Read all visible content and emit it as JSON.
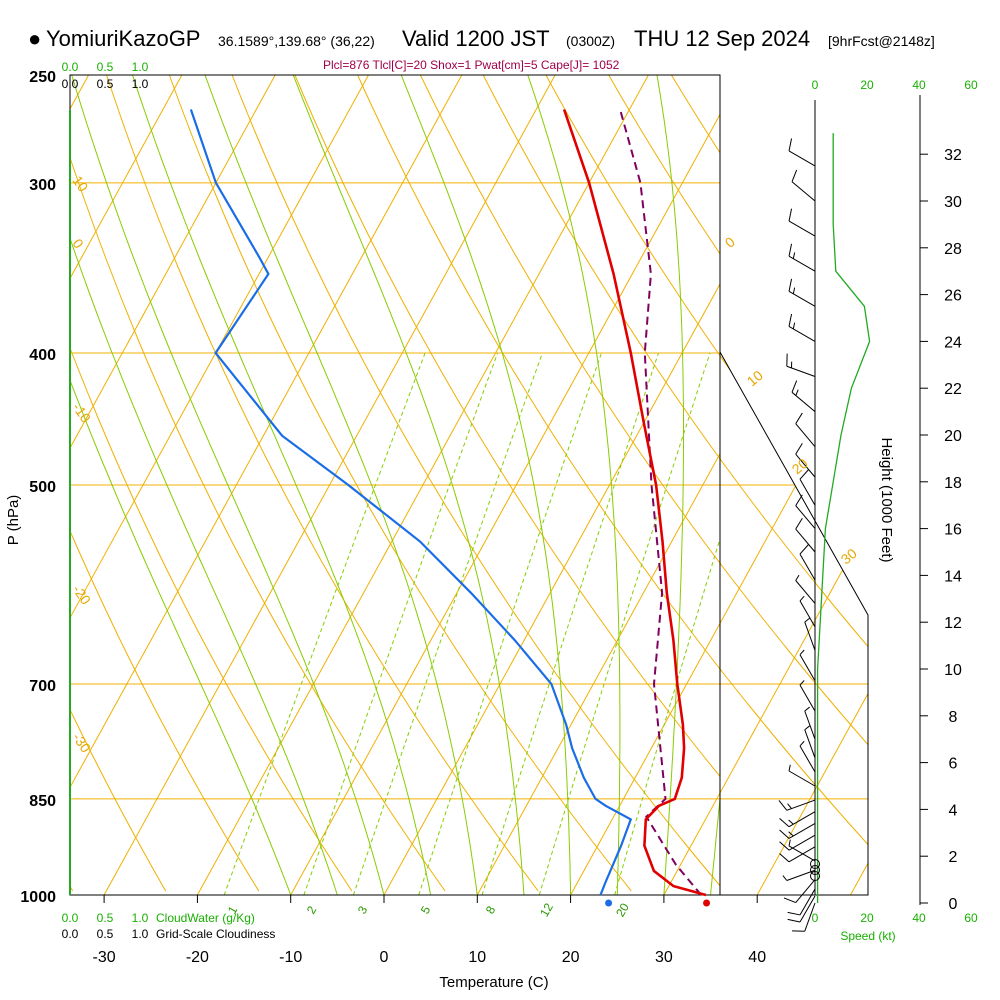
{
  "header": {
    "station": "YomiuriKazoGP",
    "coords": "36.1589°,139.68° (36,22)",
    "valid": "Valid 1200 JST",
    "utc": "(0300Z)",
    "date": "THU 12 Sep 2024",
    "forecast": "[9hrFcst@2148z]"
  },
  "params_text": "Plcl=876 Tlcl[C]=20 Shox=1 Pwat[cm]=5 Cape[J]= 1052",
  "chart_data": {
    "type": "skewt",
    "xlabel": "Temperature (C)",
    "ylabel": "P (hPa)",
    "right_axis_label": "Height (1000 Feet)",
    "x_ticks": [
      "-30",
      "-20",
      "-10",
      "0",
      "10",
      "20",
      "30",
      "40"
    ],
    "p_ticks": [
      "250",
      "300",
      "400",
      "500",
      "700",
      "850",
      "1000"
    ],
    "height_ticks": [
      "0",
      "2",
      "4",
      "6",
      "8",
      "10",
      "12",
      "14",
      "16",
      "18",
      "20",
      "22",
      "24",
      "26",
      "28",
      "30",
      "32"
    ],
    "cloud_water_label": "CloudWater (g/Kg)",
    "cloudiness_label": "Grid-Scale Cloudiness",
    "cloud_top_ticks_green": [
      "0.0",
      "0.5",
      "1.0"
    ],
    "cloud_top_ticks_black": [
      "0.0",
      "0.5",
      "1.0"
    ],
    "cloud_bottom_ticks_green": [
      "0.0",
      "0.5",
      "1.0"
    ],
    "cloud_bottom_ticks_black": [
      "0.0",
      "0.5",
      "1.0"
    ],
    "speed_label": "Speed (kt)",
    "speed_ticks": [
      "0",
      "20",
      "40",
      "60"
    ],
    "isotherm_labels": [
      "10",
      "0",
      "-10",
      "-20",
      "-30"
    ],
    "theta_labels": [
      "0",
      "10",
      "20",
      "30"
    ],
    "mixing_labels": [
      "1",
      "2",
      "3",
      "5",
      "8",
      "12",
      "20"
    ],
    "temperature": [
      {
        "p": 1000,
        "t": 34.5
      },
      {
        "p": 985,
        "t": 30.5
      },
      {
        "p": 960,
        "t": 27.5
      },
      {
        "p": 920,
        "t": 25.0
      },
      {
        "p": 880,
        "t": 23.6
      },
      {
        "p": 860,
        "t": 24.2
      },
      {
        "p": 850,
        "t": 25.5
      },
      {
        "p": 820,
        "t": 25.0
      },
      {
        "p": 780,
        "t": 23.5
      },
      {
        "p": 750,
        "t": 22.0
      },
      {
        "p": 700,
        "t": 19.0
      },
      {
        "p": 650,
        "t": 16.0
      },
      {
        "p": 600,
        "t": 12.5
      },
      {
        "p": 550,
        "t": 9.0
      },
      {
        "p": 500,
        "t": 5.0
      },
      {
        "p": 450,
        "t": 0.0
      },
      {
        "p": 400,
        "t": -5.5
      },
      {
        "p": 350,
        "t": -12.0
      },
      {
        "p": 300,
        "t": -20.0
      },
      {
        "p": 265,
        "t": -27.0
      }
    ],
    "dewpoint": [
      {
        "p": 1000,
        "t": 23.2
      },
      {
        "p": 980,
        "t": 23.0
      },
      {
        "p": 920,
        "t": 22.5
      },
      {
        "p": 880,
        "t": 22.0
      },
      {
        "p": 860,
        "t": 18.5
      },
      {
        "p": 850,
        "t": 17.0
      },
      {
        "p": 820,
        "t": 14.5
      },
      {
        "p": 780,
        "t": 11.5
      },
      {
        "p": 750,
        "t": 9.5
      },
      {
        "p": 700,
        "t": 5.5
      },
      {
        "p": 650,
        "t": -1.0
      },
      {
        "p": 600,
        "t": -8.5
      },
      {
        "p": 550,
        "t": -17.0
      },
      {
        "p": 500,
        "t": -28.0
      },
      {
        "p": 460,
        "t": -38.0
      },
      {
        "p": 400,
        "t": -50.0
      },
      {
        "p": 350,
        "t": -49.0
      },
      {
        "p": 340,
        "t": -51.0
      },
      {
        "p": 300,
        "t": -60.0
      },
      {
        "p": 265,
        "t": -67.0
      }
    ],
    "parcel": [
      {
        "p": 1000,
        "t": 34.0
      },
      {
        "p": 950,
        "t": 29.5
      },
      {
        "p": 900,
        "t": 25.5
      },
      {
        "p": 876,
        "t": 23.5
      },
      {
        "p": 850,
        "t": 24.5
      },
      {
        "p": 800,
        "t": 22.0
      },
      {
        "p": 700,
        "t": 16.5
      },
      {
        "p": 600,
        "t": 12.0
      },
      {
        "p": 500,
        "t": 4.5
      },
      {
        "p": 400,
        "t": -4.0
      },
      {
        "p": 350,
        "t": -8.0
      },
      {
        "p": 300,
        "t": -14.5
      },
      {
        "p": 265,
        "t": -21.0
      }
    ],
    "surface_temp": {
      "p": 1000,
      "t": 35.0
    },
    "surface_dewpoint": {
      "p": 1000,
      "t": 24.5
    },
    "speed_profile": [
      {
        "h": 0,
        "s": 1
      },
      {
        "h": 2,
        "s": 1
      },
      {
        "h": 4,
        "s": 1
      },
      {
        "h": 6,
        "s": 1
      },
      {
        "h": 8,
        "s": 1
      },
      {
        "h": 10,
        "s": 1
      },
      {
        "h": 12,
        "s": 2
      },
      {
        "h": 14,
        "s": 3
      },
      {
        "h": 16,
        "s": 4
      },
      {
        "h": 18,
        "s": 7
      },
      {
        "h": 20,
        "s": 10
      },
      {
        "h": 22,
        "s": 14
      },
      {
        "h": 24,
        "s": 21
      },
      {
        "h": 25.5,
        "s": 19
      },
      {
        "h": 27,
        "s": 8
      },
      {
        "h": 29,
        "s": 7
      },
      {
        "h": 32.9,
        "s": 7
      }
    ],
    "wind_barbs": [
      {
        "h": 0.0,
        "dir": 200,
        "spd": 12
      },
      {
        "h": 0.3,
        "dir": 210,
        "spd": 12
      },
      {
        "h": 0.6,
        "dir": 210,
        "spd": 10
      },
      {
        "h": 1.0,
        "dir": 220,
        "spd": 8
      },
      {
        "h": 1.4,
        "dir": 250,
        "spd": 3
      },
      {
        "h": 1.8,
        "dir": 300,
        "spd": 4
      },
      {
        "h": 2.4,
        "dir": 240,
        "spd": 10
      },
      {
        "h": 2.9,
        "dir": 240,
        "spd": 12
      },
      {
        "h": 3.4,
        "dir": 240,
        "spd": 14
      },
      {
        "h": 3.9,
        "dir": 240,
        "spd": 14
      },
      {
        "h": 4.4,
        "dir": 250,
        "spd": 14
      },
      {
        "h": 5.0,
        "dir": 300,
        "spd": 5
      },
      {
        "h": 5.6,
        "dir": 330,
        "spd": 4
      },
      {
        "h": 6.2,
        "dir": 340,
        "spd": 5
      },
      {
        "h": 7.0,
        "dir": 340,
        "spd": 4
      },
      {
        "h": 8.2,
        "dir": 330,
        "spd": 3
      },
      {
        "h": 9.5,
        "dir": 330,
        "spd": 3
      },
      {
        "h": 10.8,
        "dir": 340,
        "spd": 3
      },
      {
        "h": 11.8,
        "dir": 330,
        "spd": 4
      },
      {
        "h": 12.8,
        "dir": 320,
        "spd": 6
      },
      {
        "h": 13.8,
        "dir": 330,
        "spd": 8
      },
      {
        "h": 15.0,
        "dir": 320,
        "spd": 8
      },
      {
        "h": 16.0,
        "dir": 320,
        "spd": 9
      },
      {
        "h": 17.0,
        "dir": 330,
        "spd": 12
      },
      {
        "h": 18.2,
        "dir": 320,
        "spd": 12
      },
      {
        "h": 19.5,
        "dir": 320,
        "spd": 12
      },
      {
        "h": 21.0,
        "dir": 310,
        "spd": 15
      },
      {
        "h": 22.5,
        "dir": 290,
        "spd": 15
      },
      {
        "h": 24.0,
        "dir": 300,
        "spd": 15
      },
      {
        "h": 25.5,
        "dir": 300,
        "spd": 15
      },
      {
        "h": 27.0,
        "dir": 300,
        "spd": 15
      },
      {
        "h": 28.5,
        "dir": 300,
        "spd": 10
      },
      {
        "h": 30.0,
        "dir": 310,
        "spd": 10
      },
      {
        "h": 31.5,
        "dir": 300,
        "spd": 10
      }
    ],
    "colors": {
      "temperature": "#e00000",
      "dewpoint": "#1a6de6",
      "parcel": "#800060",
      "isotherm": "#f0b000",
      "dry_adiabat": "#f0b000",
      "moist_adiabat": "#88cc00",
      "mixing_ratio": "#88cc00",
      "isobar": "#f0b000",
      "speed": "#22aa22",
      "cloud_axis": "#22aa22"
    }
  }
}
